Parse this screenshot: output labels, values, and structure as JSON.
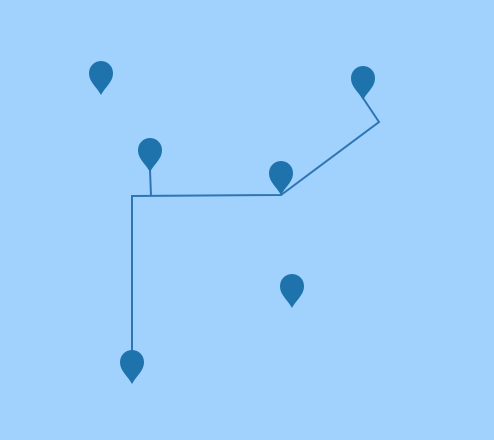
{
  "map": {
    "background_color": "#a1d2fe",
    "route_color": "#2f75b3",
    "marker_color": "#1f73ac",
    "markers": [
      {
        "icon": "map-pin-icon"
      },
      {
        "icon": "map-pin-icon"
      },
      {
        "icon": "map-pin-icon"
      },
      {
        "icon": "map-pin-icon"
      },
      {
        "icon": "map-pin-icon"
      },
      {
        "icon": "map-pin-icon"
      }
    ]
  }
}
